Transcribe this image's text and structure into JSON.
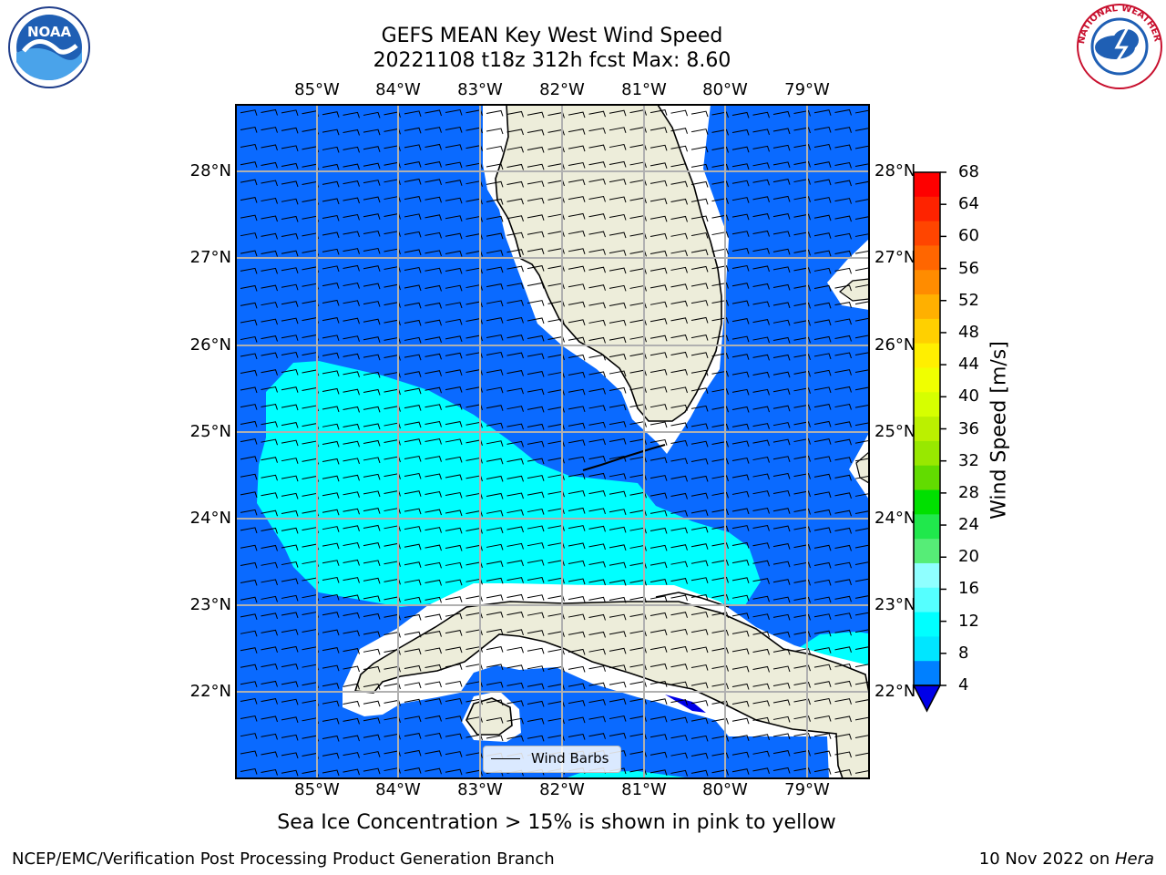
{
  "title_line1": "GEFS MEAN Key West Wind Speed",
  "title_line2": "20221108 t18z 312h fcst   Max: 8.60",
  "lon_labels": [
    "85°W",
    "84°W",
    "83°W",
    "82°W",
    "81°W",
    "80°W",
    "79°W"
  ],
  "lat_labels": [
    "28°N",
    "27°N",
    "26°N",
    "25°N",
    "24°N",
    "23°N",
    "22°N"
  ],
  "colorbar": {
    "label": "Wind Speed [m/s]",
    "ticks": [
      "68",
      "64",
      "60",
      "56",
      "52",
      "48",
      "44",
      "40",
      "36",
      "32",
      "28",
      "24",
      "20",
      "16",
      "12",
      "8",
      "4"
    ],
    "colors": [
      "#fe0000",
      "#fe2300",
      "#ff4500",
      "#ff6600",
      "#ff8c00",
      "#ffb000",
      "#ffd000",
      "#ffef00",
      "#f0ff00",
      "#d6ff00",
      "#bbf000",
      "#98e800",
      "#62dc00",
      "#00e000",
      "#20e84c",
      "#56ed77",
      "#8fffff",
      "#55ffff",
      "#00ffff",
      "#00e6ff",
      "#0080ff",
      "#0000e8"
    ]
  },
  "map_colors": {
    "ocean": "#0a6aff",
    "strong": "#00ffff",
    "land": "#ededda"
  },
  "legend_label": "Wind Barbs",
  "caption": "Sea Ice Concentration > 15% is shown in pink to yellow",
  "footer_left": "NCEP/EMC/Verification Post Processing Product Generation Branch",
  "footer_right_date": "10 Nov 2022 on ",
  "footer_right_host": "Hera",
  "logos": {
    "left": "noaa-logo",
    "right": "nws-logo"
  }
}
